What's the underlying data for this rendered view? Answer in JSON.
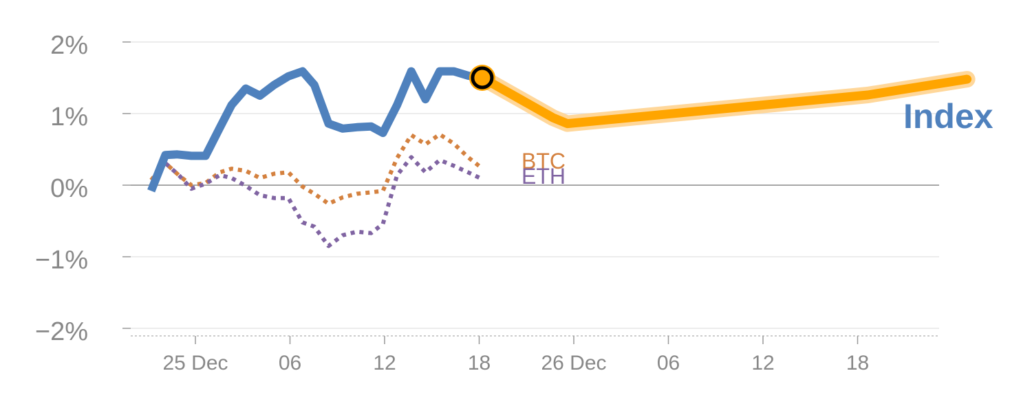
{
  "chart_data": {
    "type": "line",
    "title": "",
    "xlabel": "",
    "ylabel": "",
    "ylim": [
      -2,
      2
    ],
    "y_ticks": [
      {
        "value": 2,
        "label": "2%"
      },
      {
        "value": 1,
        "label": "1%"
      },
      {
        "value": 0,
        "label": "0%"
      },
      {
        "value": -1,
        "label": "−1%"
      },
      {
        "value": -2,
        "label": "−2%"
      }
    ],
    "x_ticks": [
      {
        "index": 2,
        "label": "25 Dec"
      },
      {
        "index": 6,
        "label": "06"
      },
      {
        "index": 10,
        "label": "12"
      },
      {
        "index": 14,
        "label": "18"
      },
      {
        "index": 18,
        "label": "26 Dec"
      },
      {
        "index": 22,
        "label": "06"
      },
      {
        "index": 26,
        "label": "12"
      },
      {
        "index": 30,
        "label": "18"
      }
    ],
    "grid": true,
    "series": [
      {
        "name": "Index",
        "color": "#4f81bd",
        "style": "solid",
        "points": [
          [
            -0.3,
            -0.08
          ],
          [
            0.3,
            0.42
          ],
          [
            0.8,
            0.43
          ],
          [
            1.4,
            0.41
          ],
          [
            2.0,
            0.41
          ],
          [
            2.6,
            0.8
          ],
          [
            3.1,
            1.12
          ],
          [
            3.7,
            1.35
          ],
          [
            4.3,
            1.25
          ],
          [
            4.9,
            1.4
          ],
          [
            5.5,
            1.52
          ],
          [
            6.1,
            1.59
          ],
          [
            6.6,
            1.4
          ],
          [
            7.2,
            0.86
          ],
          [
            7.8,
            0.79
          ],
          [
            8.4,
            0.81
          ],
          [
            9.0,
            0.82
          ],
          [
            9.5,
            0.73
          ],
          [
            10.1,
            1.12
          ],
          [
            10.7,
            1.59
          ],
          [
            11.3,
            1.2
          ],
          [
            11.9,
            1.59
          ],
          [
            12.5,
            1.59
          ],
          [
            13.1,
            1.53
          ],
          [
            13.7,
            1.5
          ]
        ]
      },
      {
        "name": "BTC",
        "color": "#d4813f",
        "style": "dotted",
        "points": [
          [
            -0.3,
            0.07
          ],
          [
            0.3,
            0.31
          ],
          [
            0.9,
            0.13
          ],
          [
            1.4,
            0.0
          ],
          [
            2.0,
            0.03
          ],
          [
            2.6,
            0.18
          ],
          [
            3.1,
            0.23
          ],
          [
            3.7,
            0.2
          ],
          [
            4.3,
            0.1
          ],
          [
            4.9,
            0.16
          ],
          [
            5.5,
            0.18
          ],
          [
            6.1,
            -0.02
          ],
          [
            6.6,
            -0.12
          ],
          [
            7.2,
            -0.26
          ],
          [
            7.8,
            -0.17
          ],
          [
            8.4,
            -0.12
          ],
          [
            9.0,
            -0.1
          ],
          [
            9.5,
            -0.08
          ],
          [
            10.1,
            0.38
          ],
          [
            10.7,
            0.7
          ],
          [
            11.3,
            0.57
          ],
          [
            11.9,
            0.71
          ],
          [
            12.5,
            0.58
          ],
          [
            13.1,
            0.39
          ],
          [
            13.6,
            0.26
          ]
        ]
      },
      {
        "name": "ETH",
        "color": "#8064a2",
        "style": "dotted",
        "points": [
          [
            -0.3,
            0.0
          ],
          [
            0.3,
            0.31
          ],
          [
            0.9,
            0.13
          ],
          [
            1.4,
            -0.05
          ],
          [
            2.0,
            0.02
          ],
          [
            2.6,
            0.14
          ],
          [
            3.1,
            0.1
          ],
          [
            3.7,
            -0.01
          ],
          [
            4.3,
            -0.14
          ],
          [
            4.9,
            -0.18
          ],
          [
            5.5,
            -0.18
          ],
          [
            6.1,
            -0.52
          ],
          [
            6.6,
            -0.58
          ],
          [
            7.2,
            -0.85
          ],
          [
            7.8,
            -0.7
          ],
          [
            8.4,
            -0.65
          ],
          [
            9.0,
            -0.67
          ],
          [
            9.5,
            -0.54
          ],
          [
            10.1,
            0.14
          ],
          [
            10.7,
            0.39
          ],
          [
            11.3,
            0.18
          ],
          [
            11.9,
            0.35
          ],
          [
            12.5,
            0.27
          ],
          [
            13.1,
            0.18
          ],
          [
            13.6,
            0.1
          ]
        ]
      }
    ],
    "forecast": {
      "color": "#ffa500",
      "halo_color": "#ffd79a",
      "points": [
        [
          13.7,
          1.5
        ],
        [
          16.7,
          0.94
        ],
        [
          17.3,
          0.86
        ],
        [
          30.0,
          1.26
        ],
        [
          34.2,
          1.48
        ]
      ]
    },
    "marker": {
      "point": [
        13.7,
        1.5
      ],
      "fill": "#ffa500",
      "stroke": "#000000"
    },
    "labels": {
      "index_label": "Index",
      "index_color": "#4f81bd",
      "btc_label": "BTC",
      "btc_color": "#d4813f",
      "eth_label": "ETH",
      "eth_color": "#8064a2"
    },
    "colors": {
      "grid": "#e6e6e6",
      "zero_line": "#999999",
      "tick_text": "#888888",
      "axis_bottom": "#cccccc"
    }
  }
}
